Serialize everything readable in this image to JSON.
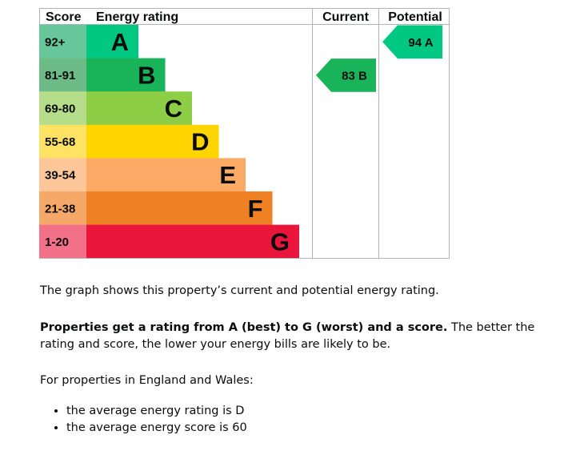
{
  "chart_data": {
    "type": "bar",
    "headers": {
      "score": "Score",
      "rating": "Energy rating",
      "current": "Current",
      "potential": "Potential"
    },
    "bands": [
      {
        "range": "92+",
        "letter": "A",
        "color": "#00c781",
        "score_color": "#67c79b"
      },
      {
        "range": "81-91",
        "letter": "B",
        "color": "#19b459",
        "score_color": "#6dbb87"
      },
      {
        "range": "69-80",
        "letter": "C",
        "color": "#8dce46",
        "score_color": "#b6dd8a"
      },
      {
        "range": "55-68",
        "letter": "D",
        "color": "#ffd500",
        "score_color": "#fde264"
      },
      {
        "range": "39-54",
        "letter": "E",
        "color": "#fcaa65",
        "score_color": "#fdc79a"
      },
      {
        "range": "21-38",
        "letter": "F",
        "color": "#ef8023",
        "score_color": "#f5a868"
      },
      {
        "range": "1-20",
        "letter": "G",
        "color": "#e9153b",
        "score_color": "#f27188"
      }
    ],
    "current": {
      "score": 83,
      "letter": "B",
      "label": "83 B",
      "color": "#19b459"
    },
    "potential": {
      "score": 94,
      "letter": "A",
      "label": "94 A",
      "color": "#00c781"
    }
  },
  "text": {
    "intro": "The graph shows this property’s current and potential energy rating.",
    "bold": "Properties get a rating from A (best) to G (worst) and a score.",
    "rest": " The better the rating and score, the lower your energy bills are likely to be.",
    "region": "For properties in England and Wales:",
    "bullets": [
      "the average energy rating is D",
      "the average energy score is 60"
    ]
  }
}
